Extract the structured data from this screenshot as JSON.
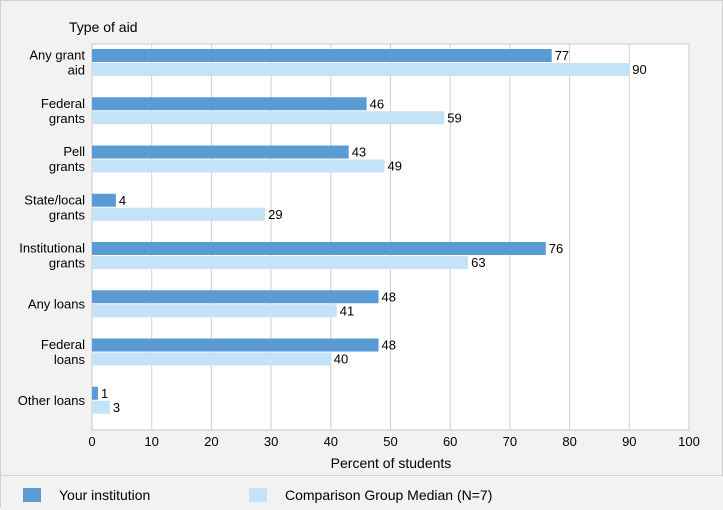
{
  "chart_data": {
    "type": "bar",
    "orientation": "horizontal",
    "title": "Type of aid",
    "xlabel": "Percent of students",
    "categories": [
      [
        "Any grant",
        "aid"
      ],
      [
        "Federal",
        "grants"
      ],
      [
        "Pell",
        "grants"
      ],
      [
        "State/local",
        "grants"
      ],
      [
        "Institutional",
        "grants"
      ],
      [
        "Any loans"
      ],
      [
        "Federal",
        "loans"
      ],
      [
        "Other loans"
      ]
    ],
    "series": [
      {
        "name": "Your institution",
        "color": "#5b9bd5",
        "values": [
          77,
          46,
          43,
          4,
          76,
          48,
          48,
          1
        ]
      },
      {
        "name": "Comparison Group Median (N=7)",
        "color": "#c5e3f7",
        "values": [
          90,
          59,
          49,
          29,
          63,
          41,
          40,
          3
        ]
      }
    ],
    "xlim": [
      0,
      100
    ],
    "xticks": [
      0,
      10,
      20,
      30,
      40,
      50,
      60,
      70,
      80,
      90,
      100
    ],
    "grid": true,
    "legend_position": "bottom"
  },
  "legend": {
    "items": [
      {
        "label": "Your institution",
        "color": "#5b9bd5"
      },
      {
        "label": "Comparison Group Median (N=7)",
        "color": "#c5e3f7"
      }
    ]
  }
}
